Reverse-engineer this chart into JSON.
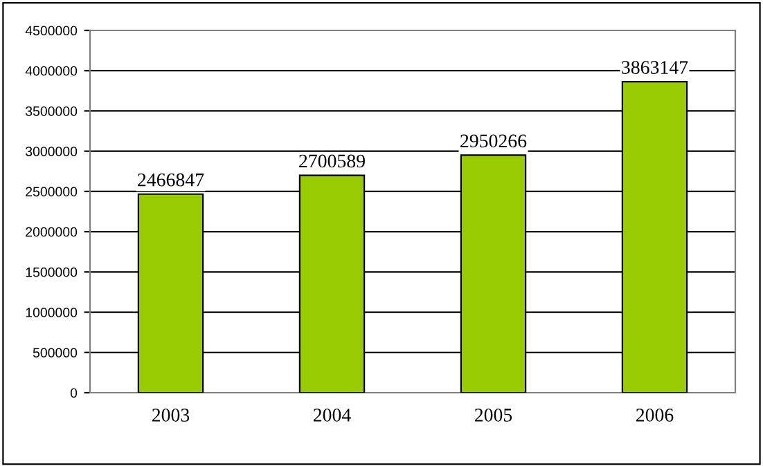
{
  "chart_data": {
    "type": "bar",
    "categories": [
      "2003",
      "2004",
      "2005",
      "2006"
    ],
    "values": [
      2466847,
      2700589,
      2950266,
      3863147
    ],
    "color": "#99cc00",
    "data_labels": true,
    "grid": "y",
    "ylim": [
      0,
      4500000
    ],
    "yticks": [
      0,
      500000,
      1000000,
      1500000,
      2000000,
      2500000,
      3000000,
      3500000,
      4000000,
      4500000
    ]
  }
}
